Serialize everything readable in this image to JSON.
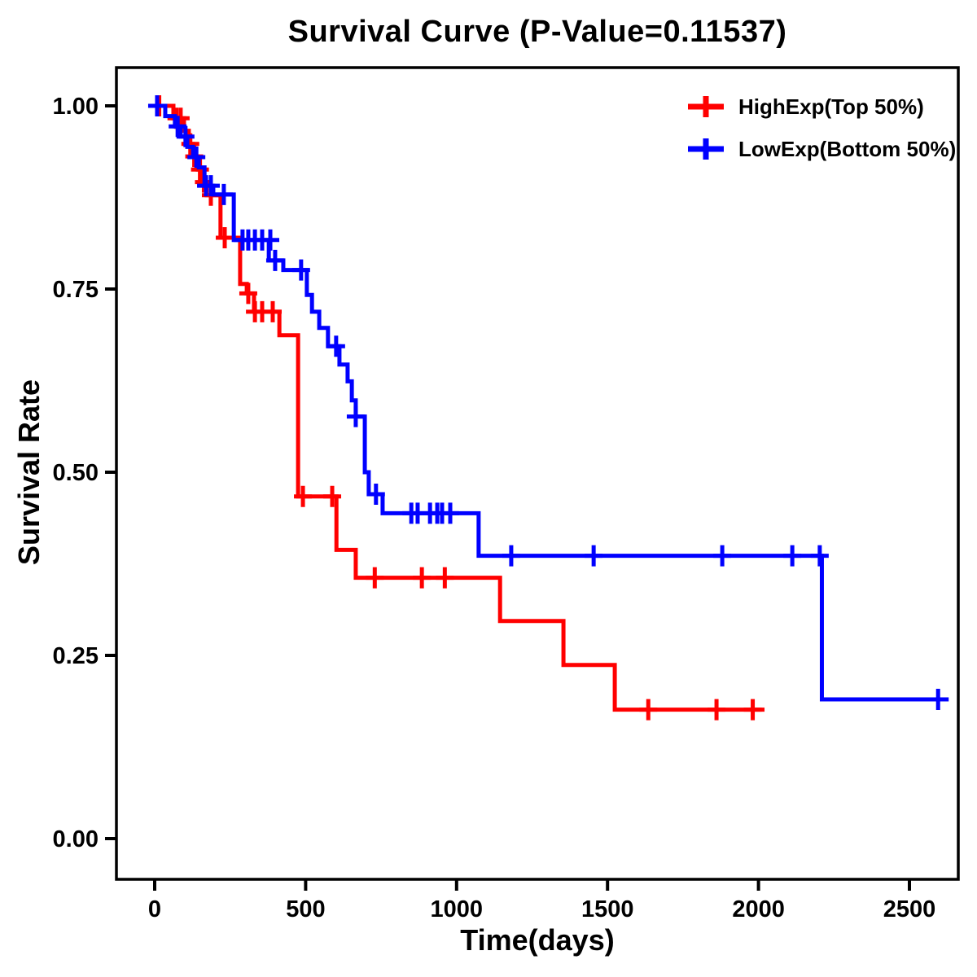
{
  "chart_data": {
    "type": "line",
    "subtype": "kaplan-meier-survival-step",
    "title": "Survival Curve (P-Value=0.11537)",
    "xlabel": "Time(days)",
    "ylabel": "Survival Rate",
    "grid": false,
    "legend_position": "top-right-inside",
    "axis_color": "#000000",
    "xticks": [
      0,
      500,
      1000,
      1500,
      2000,
      2500
    ],
    "xtick_labels": [
      "0",
      "500",
      "1000",
      "1500",
      "2000",
      "2500"
    ],
    "yticks": [
      0.0,
      0.25,
      0.5,
      0.75,
      1.0
    ],
    "ytick_labels": [
      "0.00",
      "0.25",
      "0.50",
      "0.75",
      "1.00"
    ],
    "xlim": [
      -127,
      2662
    ],
    "ylim": [
      -0.055,
      1.052
    ],
    "series": [
      {
        "name": "HighExp(Top 50%)",
        "color": "#FF0000",
        "end_time": 2020,
        "steps": [
          [
            0,
            1.0
          ],
          [
            62,
            0.983
          ],
          [
            97,
            0.966
          ],
          [
            113,
            0.948
          ],
          [
            127,
            0.931
          ],
          [
            143,
            0.913
          ],
          [
            158,
            0.896
          ],
          [
            172,
            0.878
          ],
          [
            218,
            0.82
          ],
          [
            283,
            0.757
          ],
          [
            305,
            0.744
          ],
          [
            329,
            0.719
          ],
          [
            413,
            0.687
          ],
          [
            475,
            0.467
          ],
          [
            602,
            0.394
          ],
          [
            666,
            0.356
          ],
          [
            1144,
            0.297
          ],
          [
            1354,
            0.237
          ],
          [
            1524,
            0.176
          ]
        ],
        "censors": [
          [
            15,
            1.0
          ],
          [
            72,
            0.983
          ],
          [
            86,
            0.983
          ],
          [
            118,
            0.948
          ],
          [
            131,
            0.931
          ],
          [
            150,
            0.913
          ],
          [
            163,
            0.896
          ],
          [
            186,
            0.878
          ],
          [
            232,
            0.82
          ],
          [
            310,
            0.744
          ],
          [
            332,
            0.719
          ],
          [
            356,
            0.719
          ],
          [
            391,
            0.719
          ],
          [
            491,
            0.467
          ],
          [
            588,
            0.467
          ],
          [
            729,
            0.356
          ],
          [
            885,
            0.356
          ],
          [
            961,
            0.356
          ],
          [
            1635,
            0.176
          ],
          [
            1861,
            0.176
          ],
          [
            1981,
            0.176
          ]
        ]
      },
      {
        "name": "LowExp(Bottom 50%)",
        "color": "#0000FF",
        "end_time": 2630,
        "steps": [
          [
            0,
            1.0
          ],
          [
            35,
            0.986
          ],
          [
            67,
            0.972
          ],
          [
            86,
            0.958
          ],
          [
            108,
            0.944
          ],
          [
            127,
            0.93
          ],
          [
            146,
            0.916
          ],
          [
            165,
            0.891
          ],
          [
            194,
            0.879
          ],
          [
            262,
            0.817
          ],
          [
            378,
            0.789
          ],
          [
            426,
            0.776
          ],
          [
            504,
            0.742
          ],
          [
            521,
            0.719
          ],
          [
            545,
            0.697
          ],
          [
            574,
            0.672
          ],
          [
            612,
            0.647
          ],
          [
            639,
            0.624
          ],
          [
            653,
            0.598
          ],
          [
            666,
            0.576
          ],
          [
            696,
            0.5
          ],
          [
            709,
            0.47
          ],
          [
            755,
            0.444
          ],
          [
            1073,
            0.386
          ],
          [
            2210,
            0.19
          ]
        ],
        "censors": [
          [
            8,
            1.0
          ],
          [
            76,
            0.972
          ],
          [
            102,
            0.958
          ],
          [
            138,
            0.93
          ],
          [
            170,
            0.891
          ],
          [
            186,
            0.891
          ],
          [
            229,
            0.879
          ],
          [
            291,
            0.817
          ],
          [
            310,
            0.817
          ],
          [
            332,
            0.817
          ],
          [
            356,
            0.817
          ],
          [
            383,
            0.817
          ],
          [
            399,
            0.789
          ],
          [
            485,
            0.776
          ],
          [
            601,
            0.672
          ],
          [
            666,
            0.576
          ],
          [
            733,
            0.47
          ],
          [
            850,
            0.444
          ],
          [
            871,
            0.444
          ],
          [
            912,
            0.444
          ],
          [
            936,
            0.444
          ],
          [
            952,
            0.444
          ],
          [
            979,
            0.444
          ],
          [
            1181,
            0.386
          ],
          [
            1454,
            0.386
          ],
          [
            1880,
            0.386
          ],
          [
            2112,
            0.386
          ],
          [
            2203,
            0.386
          ],
          [
            2595,
            0.19
          ]
        ]
      }
    ]
  }
}
